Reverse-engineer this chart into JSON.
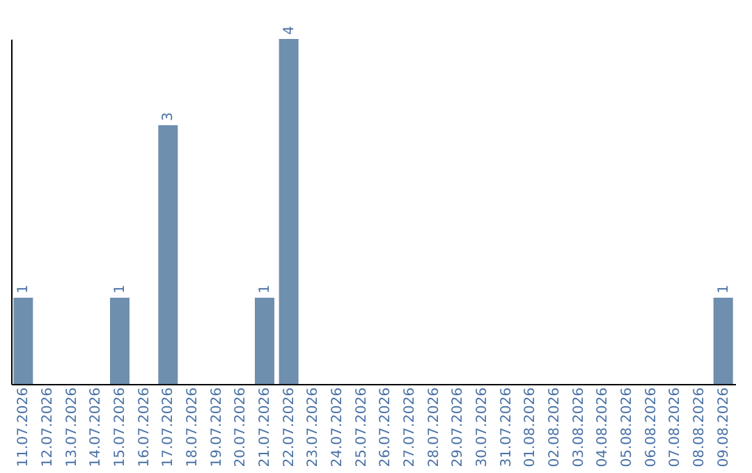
{
  "chart_data": {
    "type": "bar",
    "categories": [
      "11.07.2026",
      "12.07.2026",
      "13.07.2026",
      "14.07.2026",
      "15.07.2026",
      "16.07.2026",
      "17.07.2026",
      "18.07.2026",
      "19.07.2026",
      "20.07.2026",
      "21.07.2026",
      "22.07.2026",
      "23.07.2026",
      "24.07.2026",
      "25.07.2026",
      "26.07.2026",
      "27.07.2026",
      "28.07.2026",
      "29.07.2026",
      "30.07.2026",
      "31.07.2026",
      "01.08.2026",
      "02.08.2026",
      "03.08.2026",
      "04.08.2026",
      "05.08.2026",
      "06.08.2026",
      "07.08.2026",
      "08.08.2026",
      "09.08.2026"
    ],
    "values": [
      1,
      0,
      0,
      0,
      1,
      0,
      3,
      0,
      0,
      0,
      1,
      4,
      0,
      0,
      0,
      0,
      0,
      0,
      0,
      0,
      0,
      0,
      0,
      0,
      0,
      0,
      0,
      0,
      0,
      1
    ],
    "value_labels": [
      "1",
      null,
      null,
      null,
      "1",
      null,
      "3",
      null,
      null,
      null,
      "1",
      "4",
      null,
      null,
      null,
      null,
      null,
      null,
      null,
      null,
      null,
      null,
      null,
      null,
      null,
      null,
      null,
      null,
      null,
      "1"
    ],
    "color": "#6e8fae",
    "ylim": [
      0,
      4
    ],
    "tick_labels": "x"
  }
}
